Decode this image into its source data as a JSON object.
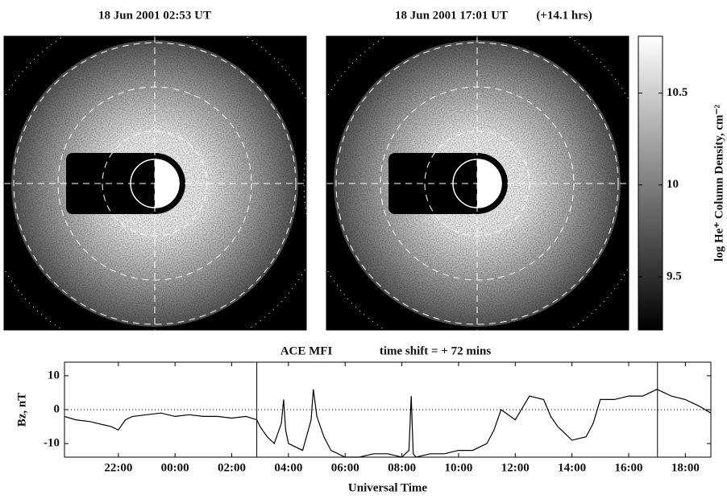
{
  "chart_data": [
    {
      "type": "image",
      "title": "18 Jun 2001 02:53 UT"
    },
    {
      "type": "image",
      "title": "18 Jun 2001 17:01 UT",
      "annotation": "(+14.1 hrs)"
    },
    {
      "type": "colorbar",
      "label": "log He⁺ Column Density, cm⁻²",
      "ylim": [
        9.21,
        10.81
      ],
      "yticks": [
        9.5,
        10,
        10.5
      ]
    },
    {
      "type": "line",
      "title": "ACE MFI",
      "subtitle": "time shift = + 72 mins",
      "ylabel": "Bz, nT",
      "xlabel": "Universal Time",
      "color": "#000000",
      "xlim": [
        -3.9,
        18.9
      ],
      "ylim": [
        -14,
        14
      ],
      "yticks": [
        -10,
        0,
        10
      ],
      "xticks": [
        {
          "value": -2,
          "label": "22:00"
        },
        {
          "value": 0,
          "label": "00:00"
        },
        {
          "value": 2,
          "label": "02:00"
        },
        {
          "value": 4,
          "label": "04:00"
        },
        {
          "value": 6,
          "label": "06:00"
        },
        {
          "value": 8,
          "label": "08:00"
        },
        {
          "value": 10,
          "label": "10:00"
        },
        {
          "value": 12,
          "label": "12:00"
        },
        {
          "value": 14,
          "label": "14:00"
        },
        {
          "value": 16,
          "label": "16:00"
        },
        {
          "value": 18,
          "label": "18:00"
        }
      ],
      "zero_line": true,
      "markers": [
        2.883,
        17.017
      ],
      "x": [
        -3.9,
        -3.5,
        -3,
        -2.5,
        -2.25,
        -2,
        -1.75,
        -1.5,
        -1,
        -0.5,
        0,
        0.5,
        1,
        1.5,
        2,
        2.5,
        2.883,
        3,
        3.25,
        3.5,
        3.75,
        3.83,
        3.9,
        4,
        4.5,
        4.8,
        4.88,
        5,
        5.25,
        5.5,
        6,
        6.5,
        7,
        7.5,
        8,
        8.25,
        8.33,
        8.4,
        8.5,
        9,
        9.5,
        10,
        10.5,
        11,
        11.25,
        11.5,
        12,
        12.5,
        13,
        13.25,
        13.5,
        14,
        14.5,
        14.75,
        15,
        15.5,
        16,
        16.5,
        17,
        17.5,
        18,
        18.5,
        18.9
      ],
      "values": [
        -2,
        -3,
        -3.5,
        -4.5,
        -5,
        -6,
        -3,
        -2,
        -1.5,
        -1,
        -2,
        -1.5,
        -2,
        -2,
        -2.5,
        -2,
        -3,
        -5,
        -8,
        -10,
        -4,
        3,
        -6,
        -10,
        -12,
        -3,
        6,
        -2,
        -8,
        -12,
        -14,
        -14,
        -13,
        -13,
        -14,
        -12,
        4,
        -13,
        -14,
        -13,
        -13,
        -12,
        -12,
        -10,
        -6,
        0,
        -3,
        4,
        3,
        -2,
        -5,
        -9,
        -8,
        -4,
        3,
        3,
        4,
        4,
        6,
        4,
        3,
        1,
        -1
      ]
    }
  ]
}
